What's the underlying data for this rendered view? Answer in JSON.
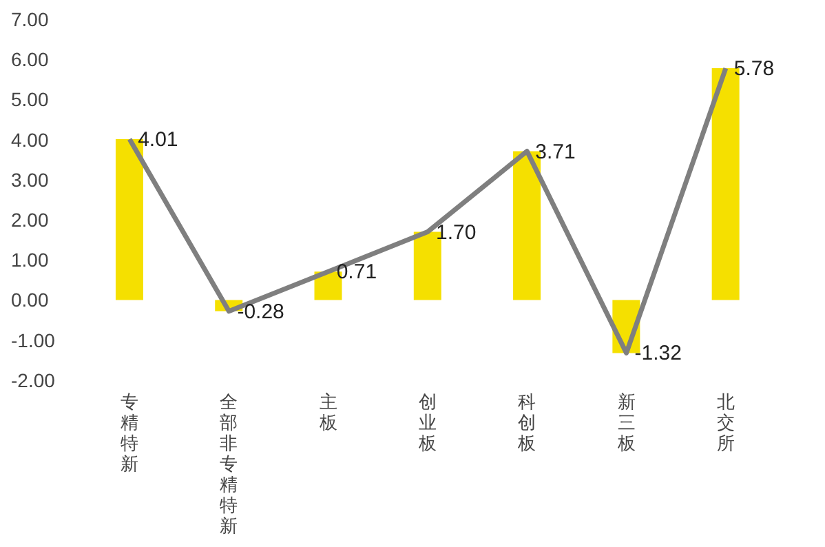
{
  "chart_data": {
    "type": "bar",
    "categories": [
      "专精特新",
      "全部非专精特新",
      "主板",
      "创业板",
      "科创板",
      "新三板",
      "北交所"
    ],
    "series": [
      {
        "color": "#f5e000",
        "values": [
          4.01,
          -0.28,
          0.71,
          1.7,
          3.71,
          -1.32,
          5.78
        ]
      },
      {
        "type": "line",
        "color": "#7f7f7f",
        "values": [
          4.01,
          -0.28,
          0.71,
          1.7,
          3.71,
          -1.32,
          5.78
        ],
        "value_labels": [
          "4.01",
          "-0.28",
          "0.71",
          "1.70",
          "3.71",
          "-1.32",
          "5.78"
        ]
      }
    ],
    "ylim": [
      -2,
      7
    ],
    "yticks": [
      {
        "value": -2,
        "label": "-2.00"
      },
      {
        "value": -1,
        "label": "-1.00"
      },
      {
        "value": 0,
        "label": "0.00"
      },
      {
        "value": 1,
        "label": "1.00"
      },
      {
        "value": 2,
        "label": "2.00"
      },
      {
        "value": 3,
        "label": "3.00"
      },
      {
        "value": 4,
        "label": "4.00"
      },
      {
        "value": 5,
        "label": "5.00"
      },
      {
        "value": 6,
        "label": "6.00"
      },
      {
        "value": 7,
        "label": "7.00"
      }
    ],
    "grid": false,
    "legend": false,
    "marker": "none"
  }
}
